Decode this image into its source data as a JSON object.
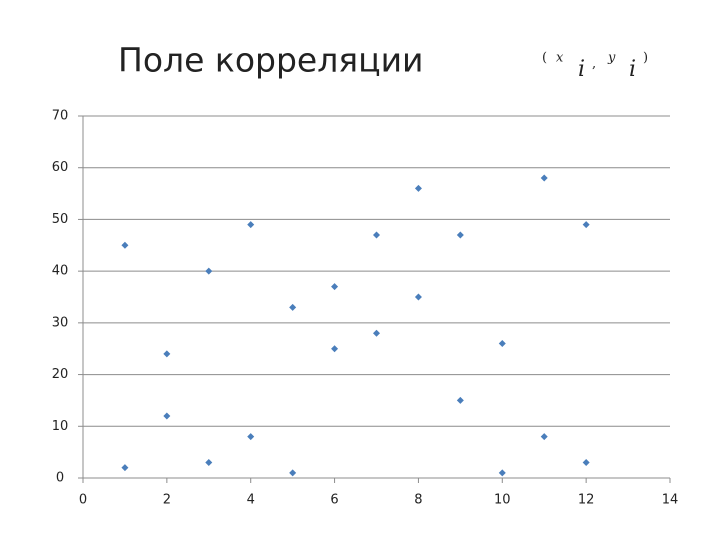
{
  "chart_data": {
    "type": "scatter",
    "title": "Поле корреляции",
    "formula": {
      "open": "(",
      "x": "x",
      "x_sub": "i",
      "sep": ",",
      "y": "y",
      "y_sub": "i",
      "close": ")"
    },
    "x": [
      1,
      1,
      2,
      2,
      3,
      3,
      4,
      4,
      5,
      5,
      6,
      6,
      7,
      7,
      8,
      8,
      9,
      9,
      10,
      10,
      11,
      11,
      12,
      12
    ],
    "values": [
      45,
      2,
      24,
      12,
      40,
      3,
      49,
      8,
      33,
      1,
      37,
      25,
      47,
      28,
      56,
      35,
      47,
      15,
      26,
      1,
      58,
      8,
      49,
      3
    ],
    "color": "#4a7ebb",
    "xlim": [
      0,
      14
    ],
    "xticks": [
      0,
      2,
      4,
      6,
      8,
      10,
      12,
      14
    ],
    "ylim": [
      0,
      70
    ],
    "yticks": [
      0,
      10,
      20,
      30,
      40,
      50,
      60,
      70
    ],
    "grid": true
  }
}
